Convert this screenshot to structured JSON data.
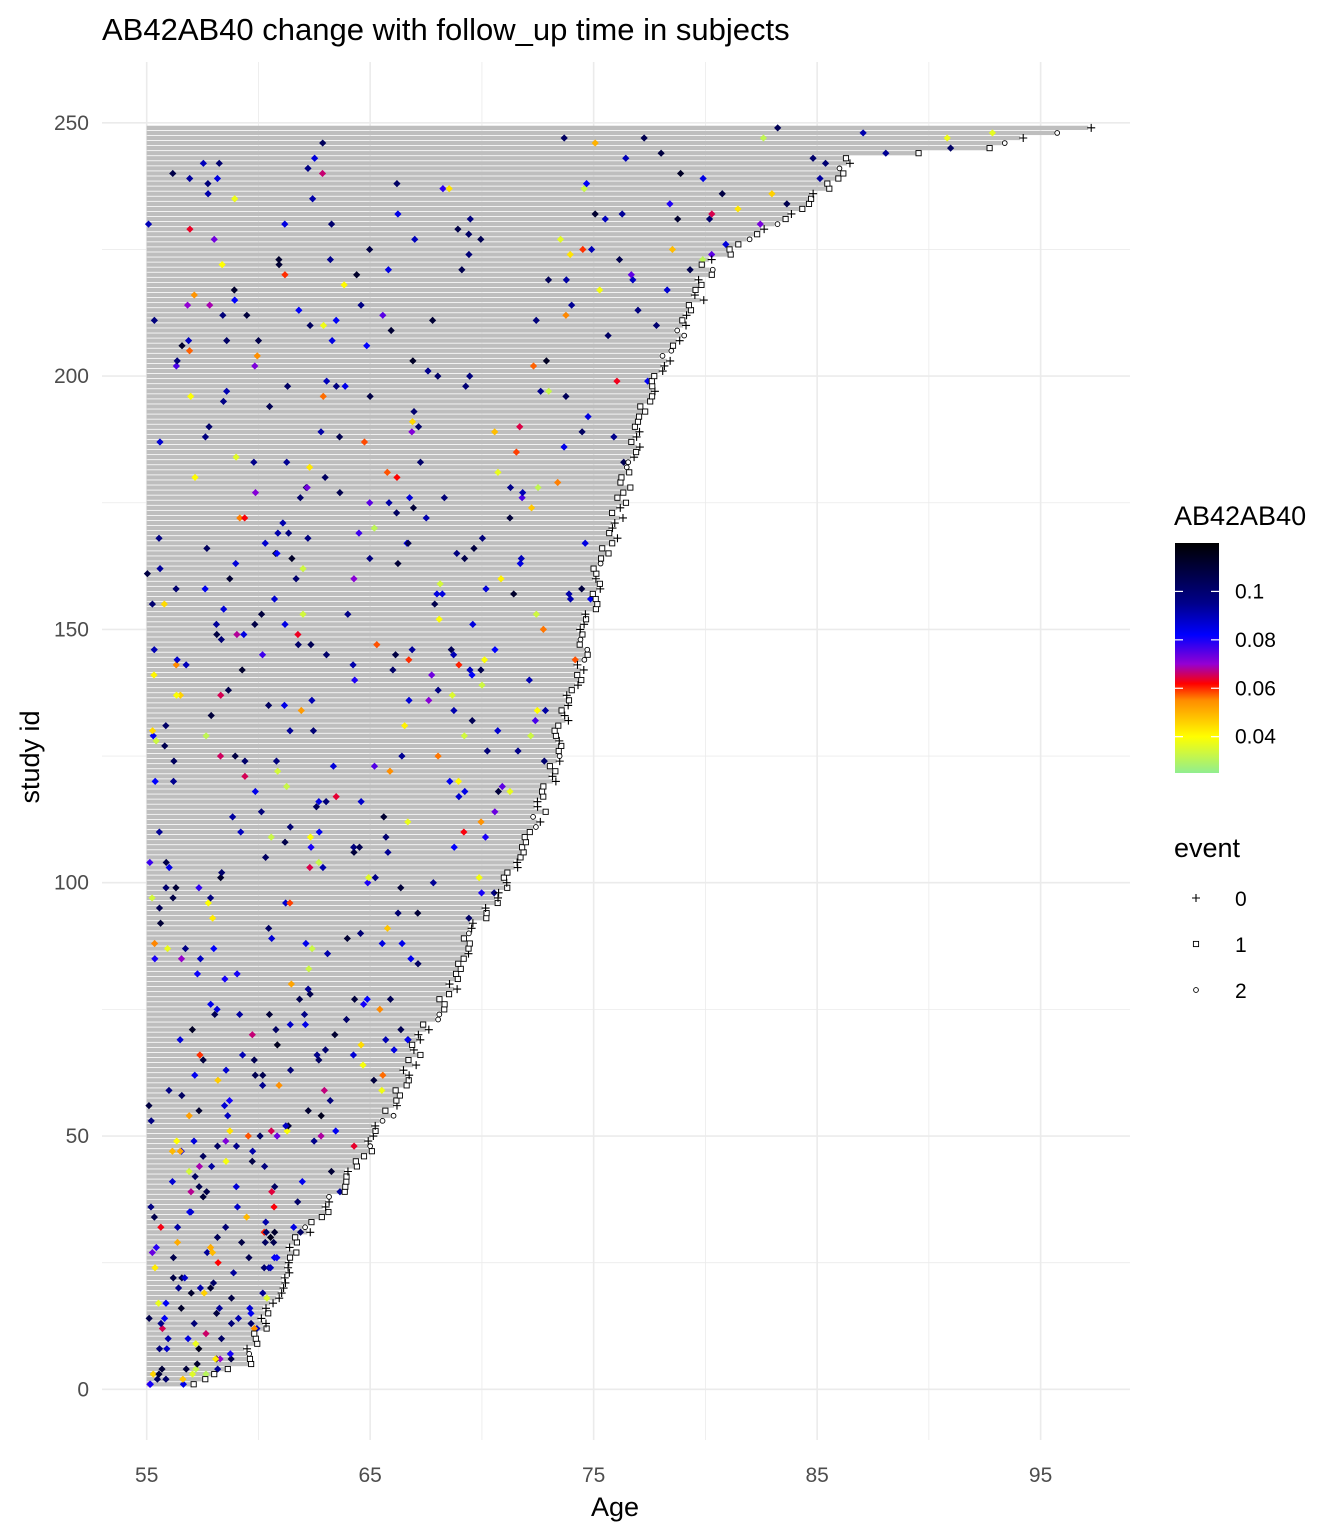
{
  "chart_data": {
    "type": "scatter",
    "subtype": "swimmer-plot",
    "title": "AB42AB40 change with follow_up time in subjects",
    "xlabel": "Age",
    "ylabel": "study id",
    "xlim": [
      53,
      99
    ],
    "ylim": [
      -10,
      262
    ],
    "x_ticks": [
      "55",
      "65",
      "75",
      "85",
      "95"
    ],
    "y_ticks": [
      "0",
      "50",
      "100",
      "150",
      "200",
      "250"
    ],
    "grid": true,
    "n_subjects": 249,
    "age_min": 55,
    "followup_end_curve": [
      [
        1,
        56.7
      ],
      [
        5,
        59.4
      ],
      [
        10,
        59.8
      ],
      [
        20,
        60.9
      ],
      [
        30,
        61.7
      ],
      [
        40,
        63.7
      ],
      [
        50,
        65.1
      ],
      [
        60,
        66.4
      ],
      [
        70,
        67.2
      ],
      [
        80,
        68.7
      ],
      [
        90,
        69.3
      ],
      [
        100,
        71.0
      ],
      [
        110,
        72.2
      ],
      [
        120,
        72.9
      ],
      [
        130,
        73.4
      ],
      [
        140,
        74.1
      ],
      [
        150,
        74.5
      ],
      [
        160,
        75.0
      ],
      [
        170,
        75.8
      ],
      [
        180,
        76.4
      ],
      [
        190,
        76.9
      ],
      [
        200,
        77.6
      ],
      [
        210,
        79.0
      ],
      [
        217,
        79.7
      ],
      [
        222,
        80.0
      ],
      [
        228,
        82.2
      ],
      [
        232,
        84.0
      ],
      [
        238,
        85.4
      ],
      [
        243,
        86.3
      ],
      [
        245,
        92.5
      ],
      [
        247,
        94.0
      ],
      [
        249,
        97.0
      ]
    ],
    "color_scale": {
      "legend_title": "AB42AB40",
      "min": 0.025,
      "max": 0.12,
      "stops": [
        [
          0.025,
          "#90ee90"
        ],
        [
          0.04,
          "#ffff00"
        ],
        [
          0.055,
          "#ff8c00"
        ],
        [
          0.062,
          "#ff0000"
        ],
        [
          0.07,
          "#9400d3"
        ],
        [
          0.082,
          "#0000ff"
        ],
        [
          0.095,
          "#00008b"
        ],
        [
          0.12,
          "#000000"
        ]
      ],
      "breaks": [
        "0.1",
        "0.08",
        "0.06",
        "0.04"
      ],
      "break_values": [
        0.1,
        0.08,
        0.06,
        0.04
      ]
    },
    "event_legend": {
      "title": "event",
      "items": [
        {
          "label": "0",
          "shape": "plus"
        },
        {
          "label": "1",
          "shape": "square"
        },
        {
          "label": "2",
          "shape": "circle"
        }
      ]
    },
    "colors": {
      "bar": "#bebebe",
      "grid": "#ebebeb",
      "tick_text": "#4d4d4d"
    }
  }
}
